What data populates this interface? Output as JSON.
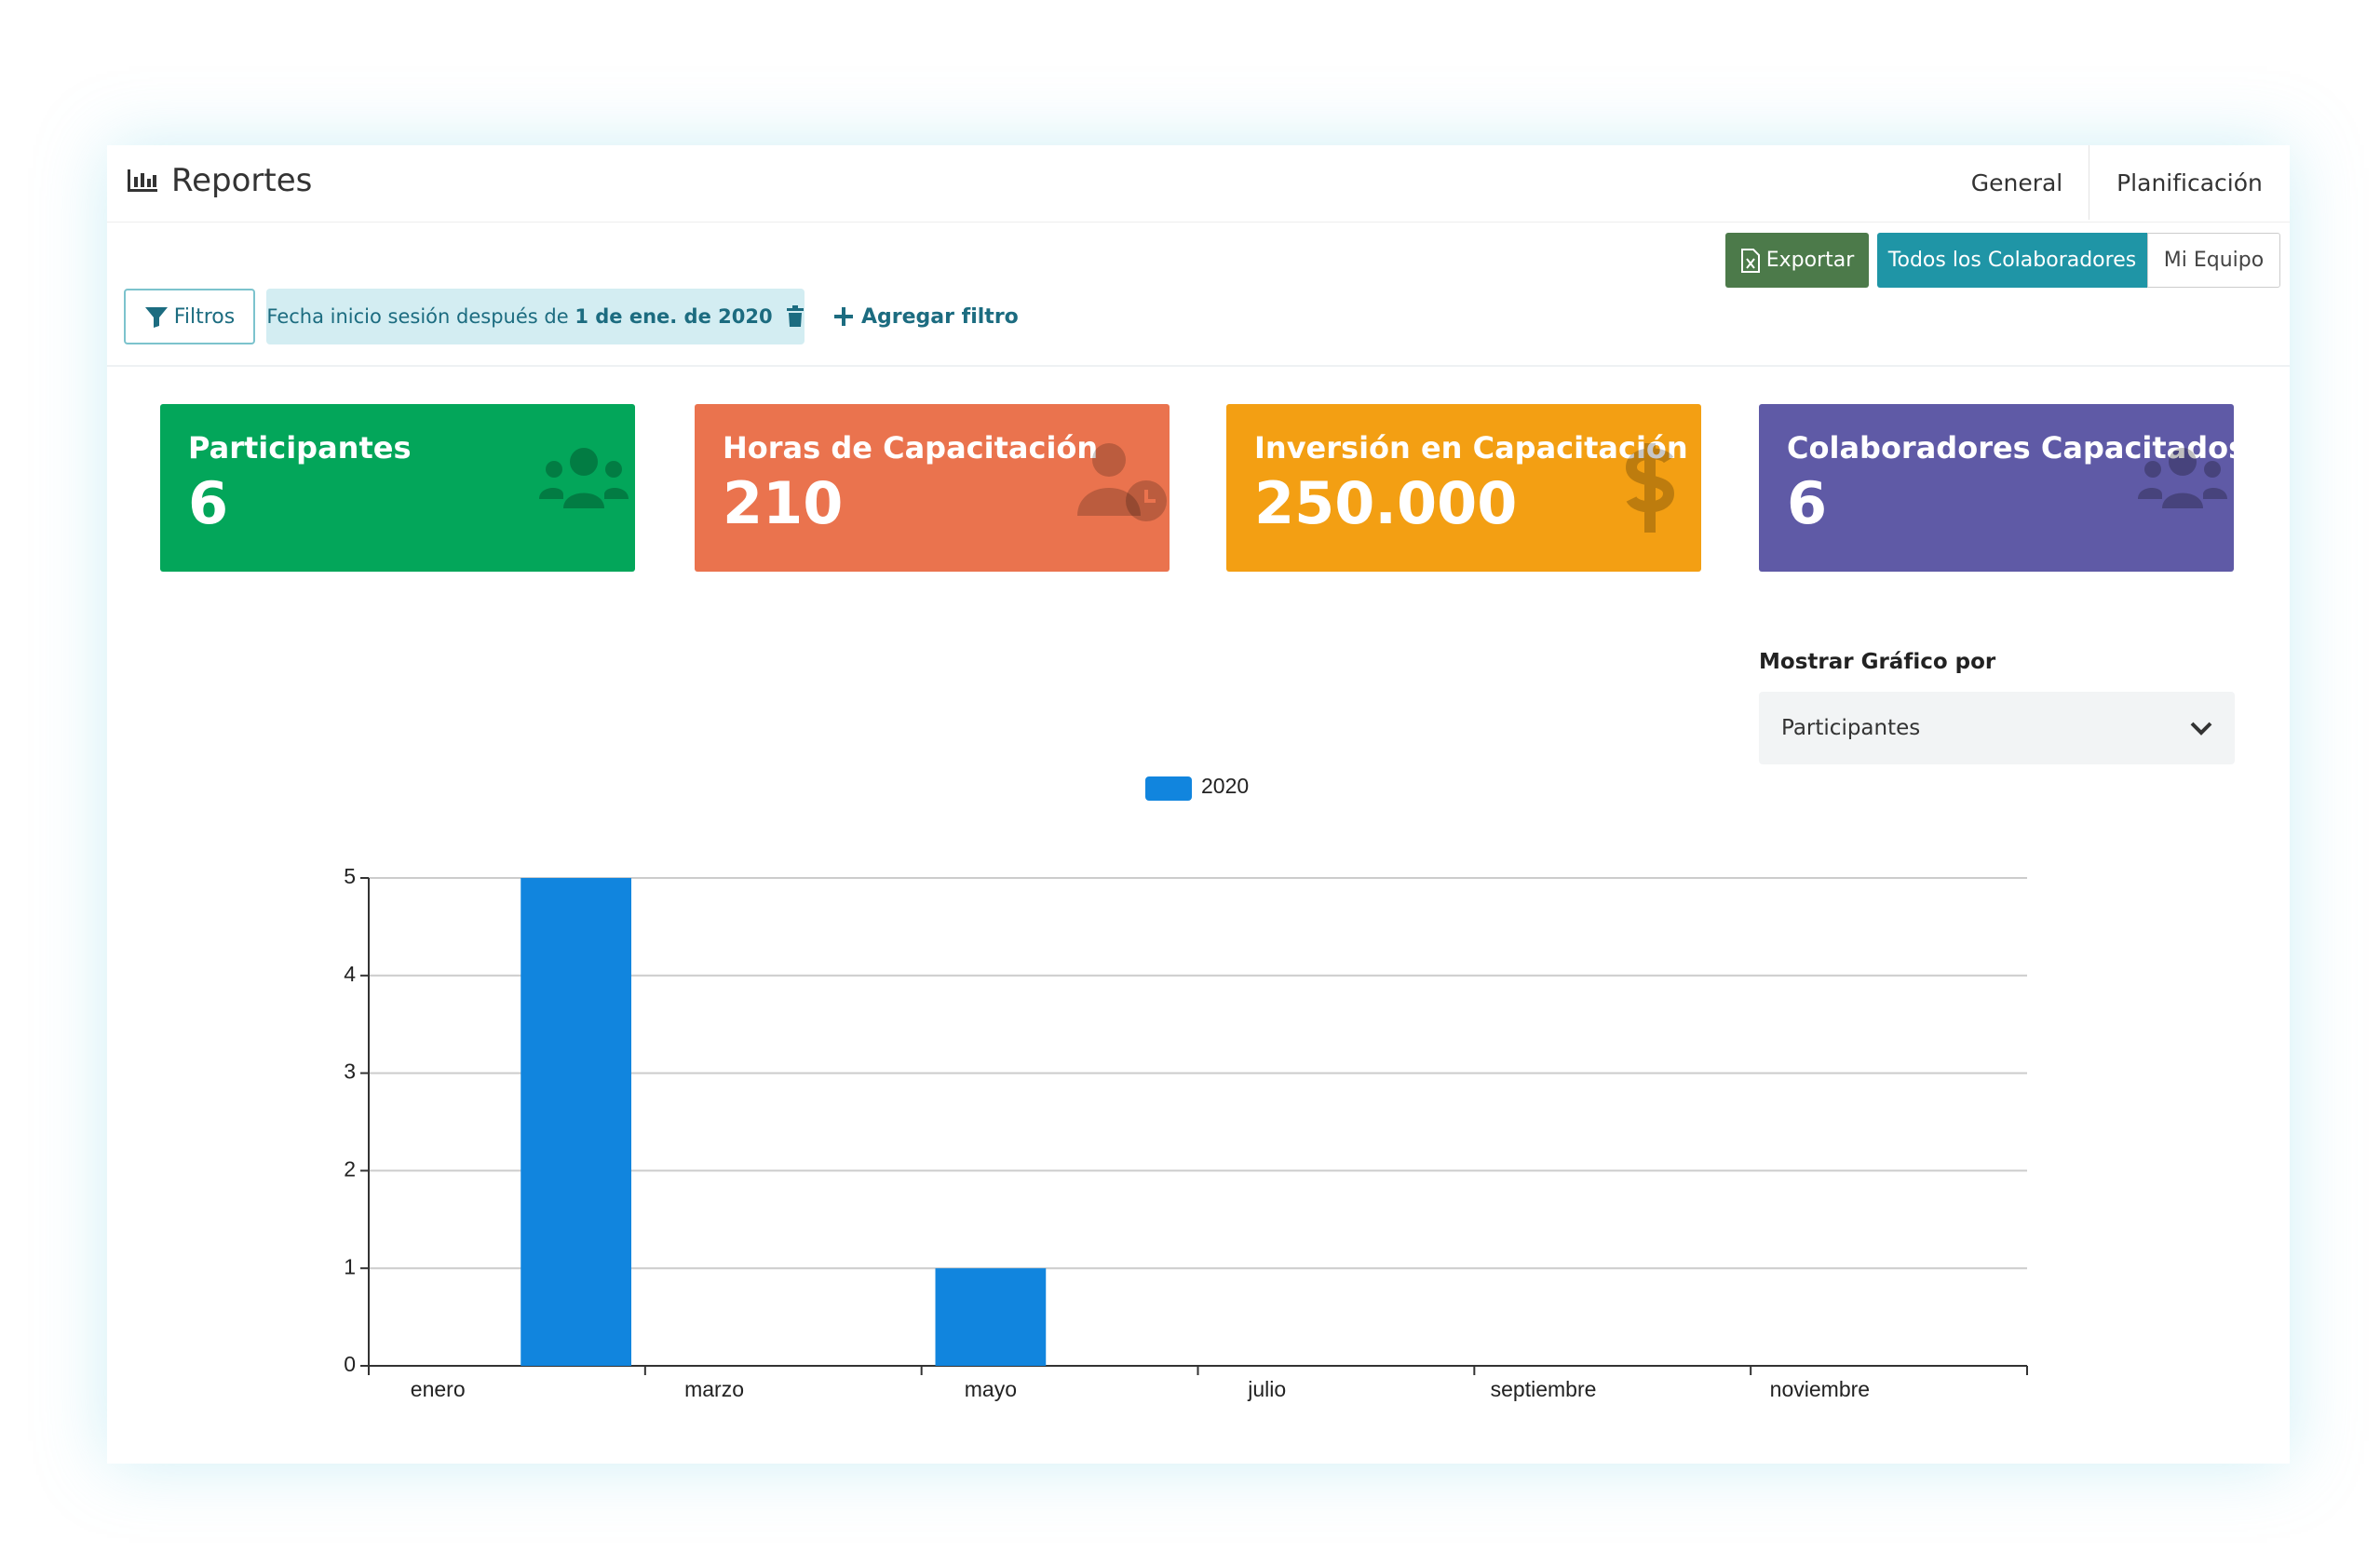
{
  "header": {
    "title": "Reportes",
    "tabs": [
      "General",
      "Planificación"
    ]
  },
  "toolbar": {
    "export": "Exportar",
    "views": [
      "Todos los Colaboradores",
      "Mi Equipo"
    ]
  },
  "filters": {
    "button": "Filtros",
    "chip_text": "Fecha inicio sesión después de",
    "chip_value": "1 de ene. de 2020",
    "add": "Agregar filtro"
  },
  "kpis": [
    {
      "title": "Participantes",
      "value": "6",
      "color": "#03a65a"
    },
    {
      "title": "Horas de Capacitación",
      "value": "210",
      "color": "#ea734e"
    },
    {
      "title": "Inversión en Capacitación",
      "value": "250.000",
      "color": "#f39f13"
    },
    {
      "title": "Colaboradores Capacitados",
      "value": "6",
      "color": "#5f5aa6"
    }
  ],
  "selector": {
    "label": "Mostrar Gráfico por",
    "selected": "Participantes"
  },
  "chart_data": {
    "type": "bar",
    "categories": [
      "enero",
      null,
      "marzo",
      null,
      "mayo",
      null,
      "julio",
      null,
      "septiembre",
      null,
      "noviembre",
      null
    ],
    "series": [
      {
        "name": "2020",
        "color": "#1185de",
        "values": [
          0,
          5,
          0,
          0,
          1,
          0,
          0,
          0,
          0,
          0,
          0,
          0
        ]
      }
    ],
    "ylim": [
      0,
      5
    ],
    "yticks": [
      0,
      1,
      2,
      3,
      4,
      5
    ],
    "grid": true
  }
}
